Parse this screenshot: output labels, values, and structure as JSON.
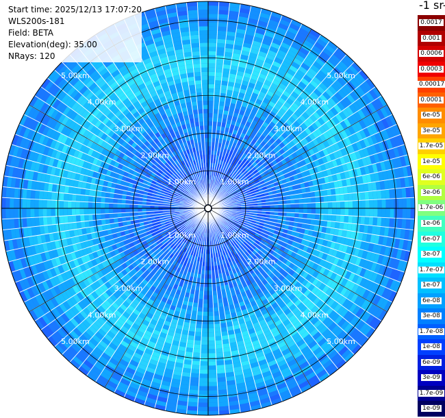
{
  "info": {
    "start_time": "Start time: 2025/12/13 17:07:20",
    "instrument": "WLS200s-181",
    "field": "Field: BETA",
    "elevation": "Elevation(deg): 35.00",
    "nrays": "NRays: 120"
  },
  "colorbar": {
    "title": "-1 sr-",
    "labels": [
      "0.0017",
      "0.001",
      "0.0006",
      "0.0003",
      "0.00017",
      "0.0001",
      "6e-05",
      "3e-05",
      "1.7e-05",
      "1e-05",
      "6e-06",
      "3e-06",
      "1.7e-06",
      "1e-06",
      "6e-07",
      "3e-07",
      "1.7e-07",
      "1e-07",
      "6e-08",
      "3e-08",
      "1.7e-08",
      "1e-08",
      "6e-09",
      "3e-09",
      "1.7e-09",
      "1e-09"
    ],
    "colors": [
      "#8b0000",
      "#b00000",
      "#d40000",
      "#f00000",
      "#ff4000",
      "#ff6000",
      "#ff8c00",
      "#ffa500",
      "#ffd000",
      "#ffff00",
      "#e0ff20",
      "#b0ff40",
      "#80ff80",
      "#40ffc0",
      "#20ffe0",
      "#00ffff",
      "#00e0ff",
      "#00c0ff",
      "#00a0ff",
      "#0080ff",
      "#0060ff",
      "#0040ff",
      "#0020e0",
      "#0000c0",
      "#000090",
      "#000060"
    ]
  },
  "chart_data": {
    "type": "heatmap",
    "projection": "polar PPI",
    "rays": 120,
    "max_range_km": 5.5,
    "range_rings_km": [
      1,
      2,
      3,
      4,
      5
    ],
    "ring_labels": [
      "1.00km",
      "2.00km",
      "3.00km",
      "4.00km",
      "5.00km"
    ],
    "dominant_values": "beta mostly between 3e-08 and 3e-07",
    "field": "BETA",
    "grid": true
  }
}
